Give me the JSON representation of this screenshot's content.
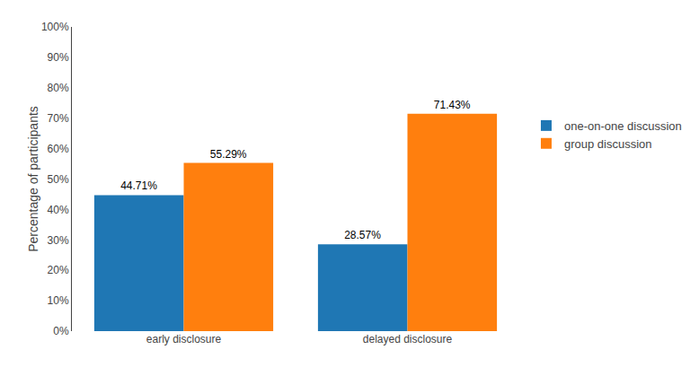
{
  "chart_data": {
    "type": "bar",
    "categories": [
      "early disclosure",
      "delayed disclosure"
    ],
    "series": [
      {
        "name": "one-on-one discussion",
        "values": [
          44.71,
          28.57
        ],
        "value_labels": [
          "44.71%",
          "28.57%"
        ]
      },
      {
        "name": "group discussion",
        "values": [
          55.29,
          71.43
        ],
        "value_labels": [
          "55.29%",
          "71.43%"
        ]
      }
    ],
    "ylabel": "Percentage of participants",
    "ylim": [
      0,
      100
    ],
    "yticks": [
      {
        "value": 0,
        "label": "0%"
      },
      {
        "value": 10,
        "label": "10%"
      },
      {
        "value": 20,
        "label": "20%"
      },
      {
        "value": 30,
        "label": "30%"
      },
      {
        "value": 40,
        "label": "40%"
      },
      {
        "value": 50,
        "label": "50%"
      },
      {
        "value": 60,
        "label": "60%"
      },
      {
        "value": 70,
        "label": "70%"
      },
      {
        "value": 80,
        "label": "80%"
      },
      {
        "value": 90,
        "label": "90%"
      },
      {
        "value": 100,
        "label": "100%"
      }
    ],
    "grid": false,
    "legend": "right",
    "data_labels": true
  }
}
